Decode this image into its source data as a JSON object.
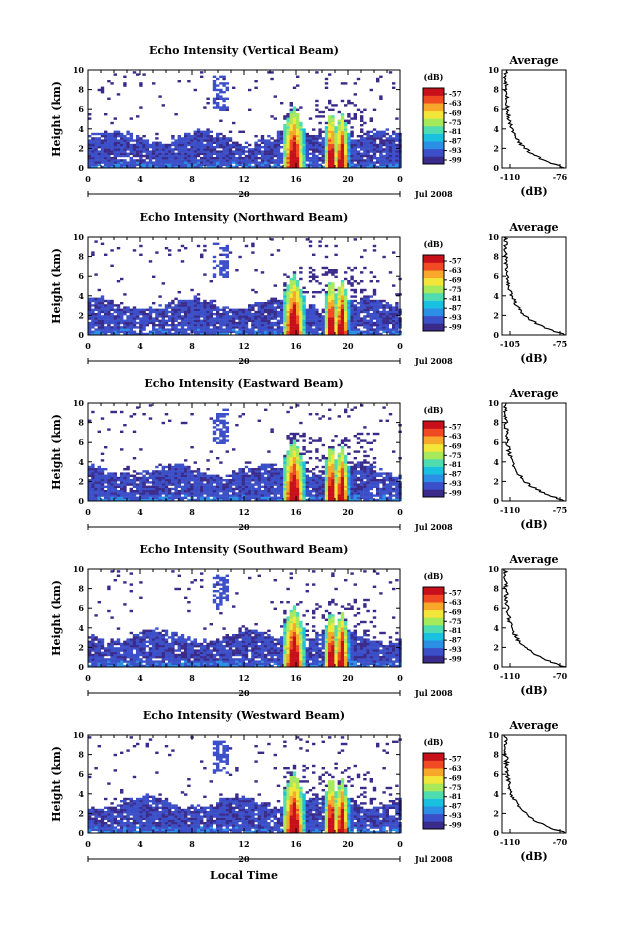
{
  "figure": {
    "bottom_xlabel": "Local Time"
  },
  "colorbar": {
    "unit_label": "(dB)",
    "tick_labels": [
      "-57",
      "-63",
      "-69",
      "-75",
      "-81",
      "-87",
      "-93",
      "-99"
    ],
    "colors": [
      "#3a2a8a",
      "#3b4fc8",
      "#2c8fe6",
      "#19c0e0",
      "#4fdcb0",
      "#a6ea5c",
      "#f3e63a",
      "#f7a72a",
      "#ef4a22",
      "#c8101a"
    ]
  },
  "chart_data": [
    {
      "type": "heatmap",
      "title": "Echo Intensity (Vertical Beam)",
      "ylabel": "Height (km)",
      "ylim": [
        0,
        10
      ],
      "yticks": [
        0,
        2,
        4,
        6,
        8,
        10
      ],
      "xlim": [
        0,
        24
      ],
      "xticks": [
        "0",
        "4",
        "8",
        "12",
        "16",
        "20",
        "0"
      ],
      "date_label": "20",
      "month_label": "Jul 2008",
      "convective_cores_hour": [
        15.7,
        18.6,
        19.4
      ],
      "profile": {
        "title": "Average",
        "xlabel": "(dB)",
        "xticks": [
          "-110",
          "-76"
        ],
        "xlim": [
          -110,
          -76
        ],
        "yticks": [
          0,
          2,
          4,
          6,
          8,
          10
        ]
      }
    },
    {
      "type": "heatmap",
      "title": "Echo Intensity (Northward Beam)",
      "ylabel": "Height (km)",
      "ylim": [
        0,
        10
      ],
      "yticks": [
        0,
        2,
        4,
        6,
        8,
        10
      ],
      "xlim": [
        0,
        24
      ],
      "xticks": [
        "0",
        "4",
        "8",
        "12",
        "16",
        "20",
        "0"
      ],
      "date_label": "20",
      "month_label": "Jul 2008",
      "convective_cores_hour": [
        15.7,
        18.6,
        19.4
      ],
      "profile": {
        "title": "Average",
        "xlabel": "(dB)",
        "xticks": [
          "-105",
          "-75"
        ],
        "xlim": [
          -105,
          -75
        ],
        "yticks": [
          0,
          2,
          4,
          6,
          8,
          10
        ]
      }
    },
    {
      "type": "heatmap",
      "title": "Echo Intensity (Eastward Beam)",
      "ylabel": "Height (km)",
      "ylim": [
        0,
        10
      ],
      "yticks": [
        0,
        2,
        4,
        6,
        8,
        10
      ],
      "xlim": [
        0,
        24
      ],
      "xticks": [
        "0",
        "4",
        "8",
        "12",
        "16",
        "20",
        "0"
      ],
      "date_label": "20",
      "month_label": "Jul 2008",
      "convective_cores_hour": [
        15.7,
        18.6,
        19.4
      ],
      "profile": {
        "title": "Average",
        "xlabel": "(dB)",
        "xticks": [
          "-110",
          "-75"
        ],
        "xlim": [
          -110,
          -75
        ],
        "yticks": [
          0,
          2,
          4,
          6,
          8,
          10
        ]
      }
    },
    {
      "type": "heatmap",
      "title": "Echo Intensity (Southward Beam)",
      "ylabel": "Height (km)",
      "ylim": [
        0,
        10
      ],
      "yticks": [
        0,
        2,
        4,
        6,
        8,
        10
      ],
      "xlim": [
        0,
        24
      ],
      "xticks": [
        "0",
        "4",
        "8",
        "12",
        "16",
        "20",
        "0"
      ],
      "date_label": "20",
      "month_label": "Jul 2008",
      "convective_cores_hour": [
        15.7,
        18.6,
        19.4
      ],
      "profile": {
        "title": "Average",
        "xlabel": "(dB)",
        "xticks": [
          "-110",
          "-70"
        ],
        "xlim": [
          -110,
          -70
        ],
        "yticks": [
          0,
          2,
          4,
          6,
          8,
          10
        ]
      }
    },
    {
      "type": "heatmap",
      "title": "Echo Intensity (Westward Beam)",
      "ylabel": "Height (km)",
      "ylim": [
        0,
        10
      ],
      "yticks": [
        0,
        2,
        4,
        6,
        8,
        10
      ],
      "xlim": [
        0,
        24
      ],
      "xticks": [
        "0",
        "4",
        "8",
        "12",
        "16",
        "20",
        "0"
      ],
      "date_label": "20",
      "month_label": "Jul 2008",
      "convective_cores_hour": [
        15.7,
        18.6,
        19.4
      ],
      "profile": {
        "title": "Average",
        "xlabel": "(dB)",
        "xticks": [
          "-110",
          "-70"
        ],
        "xlim": [
          -110,
          -70
        ],
        "yticks": [
          0,
          2,
          4,
          6,
          8,
          10
        ]
      }
    }
  ]
}
